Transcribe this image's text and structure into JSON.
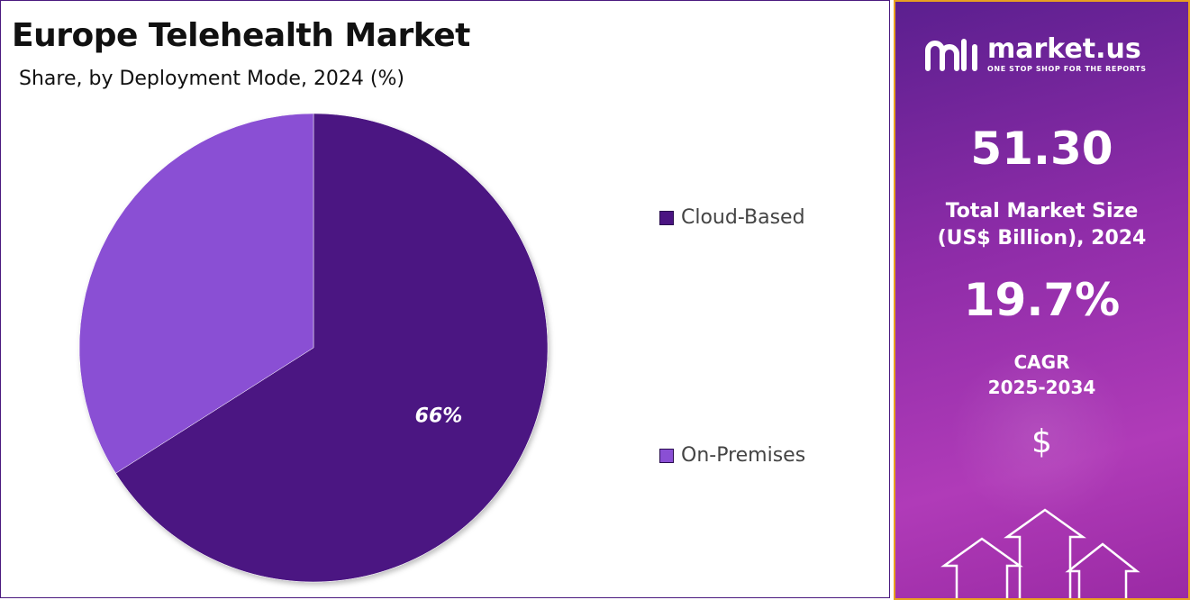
{
  "header": {
    "title": "Europe Telehealth Market",
    "subtitle": "Share, by Deployment Mode, 2024 (%)"
  },
  "chart_data": {
    "type": "pie",
    "title": "Europe Telehealth Market",
    "subtitle": "Share, by Deployment Mode, 2024 (%)",
    "slices": [
      {
        "name": "Cloud-Based",
        "value": 66,
        "color": "#4b1482",
        "label": "66%"
      },
      {
        "name": "On-Premises",
        "value": 34,
        "color": "#8a4fd4",
        "label": ""
      }
    ],
    "legend_position": "right"
  },
  "legend": {
    "items": [
      {
        "label": "Cloud-Based",
        "color": "#4b1482"
      },
      {
        "label": "On-Premises",
        "color": "#8a4fd4"
      }
    ]
  },
  "sidebar": {
    "brand": {
      "name": "market.us",
      "tagline": "ONE STOP SHOP FOR THE REPORTS"
    },
    "market_size": {
      "value": "51.30",
      "label_line1": "Total Market Size",
      "label_line2": "(US$ Billion), 2024"
    },
    "cagr": {
      "value": "19.7%",
      "label_line1": "CAGR",
      "label_line2": "2025-2034"
    },
    "currency_symbol": "$"
  }
}
